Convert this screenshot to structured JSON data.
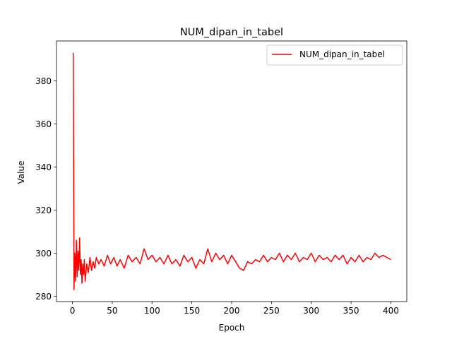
{
  "chart_data": {
    "type": "line",
    "title": "NUM_dipan_in_tabel",
    "xlabel": "Epoch",
    "ylabel": "Value",
    "xlim": [
      -20,
      420
    ],
    "ylim": [
      277.5,
      398.5
    ],
    "x_ticks": [
      0,
      50,
      100,
      150,
      200,
      250,
      300,
      350,
      400
    ],
    "y_ticks": [
      280,
      300,
      320,
      340,
      360,
      380
    ],
    "legend_position": "top-right",
    "grid": false,
    "series": [
      {
        "name": "NUM_dipan_in_tabel",
        "color": "#ff0000",
        "x": [
          1,
          2,
          3,
          4,
          5,
          6,
          7,
          8,
          9,
          10,
          11,
          12,
          13,
          14,
          15,
          16,
          18,
          20,
          22,
          24,
          26,
          28,
          30,
          33,
          36,
          40,
          44,
          48,
          52,
          56,
          60,
          65,
          70,
          75,
          80,
          85,
          90,
          95,
          100,
          105,
          110,
          115,
          120,
          125,
          130,
          135,
          140,
          145,
          150,
          155,
          160,
          165,
          170,
          175,
          180,
          185,
          190,
          195,
          200,
          205,
          210,
          215,
          220,
          225,
          230,
          235,
          240,
          245,
          250,
          255,
          260,
          265,
          270,
          275,
          280,
          285,
          290,
          295,
          300,
          305,
          310,
          315,
          320,
          325,
          330,
          335,
          340,
          345,
          350,
          355,
          360,
          365,
          370,
          375,
          380,
          385,
          390,
          395,
          400
        ],
        "values": [
          393,
          283,
          300,
          287,
          306,
          289,
          301,
          292,
          307,
          290,
          297,
          286,
          295,
          290,
          297,
          287,
          295,
          291,
          298,
          292,
          296,
          293,
          298,
          295,
          297,
          294,
          299,
          295,
          298,
          294,
          297,
          293,
          299,
          296,
          298,
          295,
          302,
          297,
          299,
          296,
          298,
          295,
          299,
          295,
          297,
          294,
          299,
          296,
          298,
          293,
          297,
          295,
          302,
          296,
          300,
          297,
          299,
          295,
          299,
          296,
          293,
          292,
          296,
          295,
          297,
          296,
          299,
          296,
          298,
          297,
          300,
          296,
          299,
          297,
          300,
          296,
          298,
          297,
          300,
          296,
          299,
          297,
          298,
          296,
          299,
          297,
          299,
          295,
          298,
          296,
          299,
          296,
          298,
          297,
          300,
          298,
          299,
          298,
          297
        ]
      }
    ]
  }
}
